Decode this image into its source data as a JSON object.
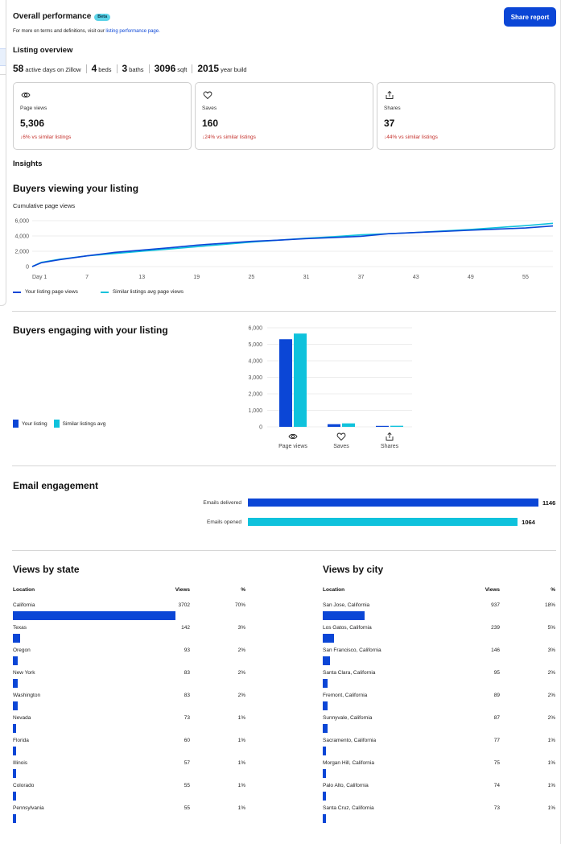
{
  "header": {
    "title": "Overall performance",
    "beta_badge": "Beta",
    "share_button": "Share report",
    "intro_text": "For more on terms and definitions, visit our",
    "intro_link": "listing performance page."
  },
  "overview": {
    "title": "Listing overview",
    "facts": [
      {
        "value": "58",
        "label": "active days on Zillow"
      },
      {
        "value": "4",
        "label": "beds"
      },
      {
        "value": "3",
        "label": "baths"
      },
      {
        "value": "3096",
        "label": "sqft"
      },
      {
        "value": "2015",
        "label": "year build"
      }
    ]
  },
  "cards": [
    {
      "icon": "eye-icon",
      "label": "Page views",
      "value": "5,306",
      "compare": "6% vs similar listings"
    },
    {
      "icon": "heart-icon",
      "label": "Saves",
      "value": "160",
      "compare": "24% vs similar listings"
    },
    {
      "icon": "share-icon",
      "label": "Shares",
      "value": "37",
      "compare": "44% vs similar listings"
    }
  ],
  "insights": {
    "title": "Insights"
  },
  "viewing": {
    "title": "Buyers viewing your listing",
    "subtitle": "Cumulative page views"
  },
  "engaging": {
    "title": "Buyers engaging with your listing"
  },
  "email": {
    "title": "Email engagement",
    "rows": [
      {
        "label": "Emails delivered",
        "value": 1146,
        "display": "1146"
      },
      {
        "label": "Emails opened",
        "value": 1064,
        "display": "1064"
      }
    ]
  },
  "by_state": {
    "title": "Views by state",
    "col_location": "Location",
    "col_views": "Views",
    "col_pct": "%",
    "rows": [
      {
        "name": "California",
        "views": "3702",
        "pct": "70%",
        "share": 0.7
      },
      {
        "name": "Texas",
        "views": "142",
        "pct": "3%",
        "share": 0.03
      },
      {
        "name": "Oregon",
        "views": "93",
        "pct": "2%",
        "share": 0.02
      },
      {
        "name": "New York",
        "views": "83",
        "pct": "2%",
        "share": 0.02
      },
      {
        "name": "Washington",
        "views": "83",
        "pct": "2%",
        "share": 0.02
      },
      {
        "name": "Nevada",
        "views": "73",
        "pct": "1%",
        "share": 0.01
      },
      {
        "name": "Florida",
        "views": "60",
        "pct": "1%",
        "share": 0.01
      },
      {
        "name": "Illinois",
        "views": "57",
        "pct": "1%",
        "share": 0.01
      },
      {
        "name": "Colorado",
        "views": "55",
        "pct": "1%",
        "share": 0.01
      },
      {
        "name": "Pennsylvania",
        "views": "55",
        "pct": "1%",
        "share": 0.01
      }
    ]
  },
  "by_city": {
    "title": "Views by city",
    "col_location": "Location",
    "col_views": "Views",
    "col_pct": "%",
    "rows": [
      {
        "name": "San Jose, California",
        "views": "937",
        "pct": "18%",
        "share": 0.18
      },
      {
        "name": "Los Gatos, California",
        "views": "239",
        "pct": "5%",
        "share": 0.05
      },
      {
        "name": "San Francisco, California",
        "views": "146",
        "pct": "3%",
        "share": 0.03
      },
      {
        "name": "Santa Clara, California",
        "views": "95",
        "pct": "2%",
        "share": 0.02
      },
      {
        "name": "Fremont, California",
        "views": "89",
        "pct": "2%",
        "share": 0.02
      },
      {
        "name": "Sunnyvale, California",
        "views": "87",
        "pct": "2%",
        "share": 0.02
      },
      {
        "name": "Sacramento, California",
        "views": "77",
        "pct": "1%",
        "share": 0.01
      },
      {
        "name": "Morgan Hill, California",
        "views": "75",
        "pct": "1%",
        "share": 0.01
      },
      {
        "name": "Palo Alto, California",
        "views": "74",
        "pct": "1%",
        "share": 0.01
      },
      {
        "name": "Santa Cruz, California",
        "views": "73",
        "pct": "1%",
        "share": 0.01
      }
    ]
  },
  "colors": {
    "primary": "#0b46d6",
    "secondary": "#0fc2dc",
    "negative": "#c4302b"
  },
  "chart_data": [
    {
      "type": "line",
      "title": "Cumulative page views",
      "x_ticks": [
        "Day 1",
        "7",
        "13",
        "19",
        "25",
        "31",
        "37",
        "43",
        "49",
        "55"
      ],
      "y_ticks": [
        "0",
        "2,000",
        "4,000",
        "6,000"
      ],
      "ylim": [
        0,
        6000
      ],
      "xlim": [
        1,
        58
      ],
      "series": [
        {
          "name": "Your listing page views",
          "x": [
            1,
            2,
            4,
            7,
            10,
            13,
            16,
            19,
            22,
            25,
            28,
            31,
            34,
            37,
            40,
            43,
            46,
            49,
            52,
            55,
            58
          ],
          "y": [
            0,
            500,
            900,
            1400,
            1850,
            2150,
            2450,
            2800,
            3050,
            3300,
            3450,
            3650,
            3800,
            3950,
            4300,
            4450,
            4600,
            4750,
            4900,
            5050,
            5306
          ]
        },
        {
          "name": "Similar listings avg page views",
          "x": [
            1,
            2,
            4,
            7,
            10,
            13,
            16,
            19,
            22,
            25,
            28,
            31,
            34,
            37,
            40,
            43,
            46,
            49,
            52,
            55,
            58
          ],
          "y": [
            0,
            550,
            950,
            1400,
            1700,
            2000,
            2300,
            2600,
            2900,
            3200,
            3450,
            3700,
            3900,
            4150,
            4300,
            4450,
            4650,
            4850,
            5100,
            5350,
            5650
          ]
        }
      ]
    },
    {
      "type": "bar",
      "categories": [
        "Page views",
        "Saves",
        "Shares"
      ],
      "category_icons": [
        "eye-icon",
        "heart-icon",
        "share-icon"
      ],
      "y_ticks": [
        "0",
        "1,000",
        "2,000",
        "3,000",
        "4,000",
        "5,000",
        "6,000"
      ],
      "ylim": [
        0,
        6000
      ],
      "series": [
        {
          "name": "Your listing",
          "values": [
            5306,
            160,
            37
          ]
        },
        {
          "name": "Similar listings avg",
          "values": [
            5650,
            210,
            66
          ]
        }
      ]
    }
  ]
}
